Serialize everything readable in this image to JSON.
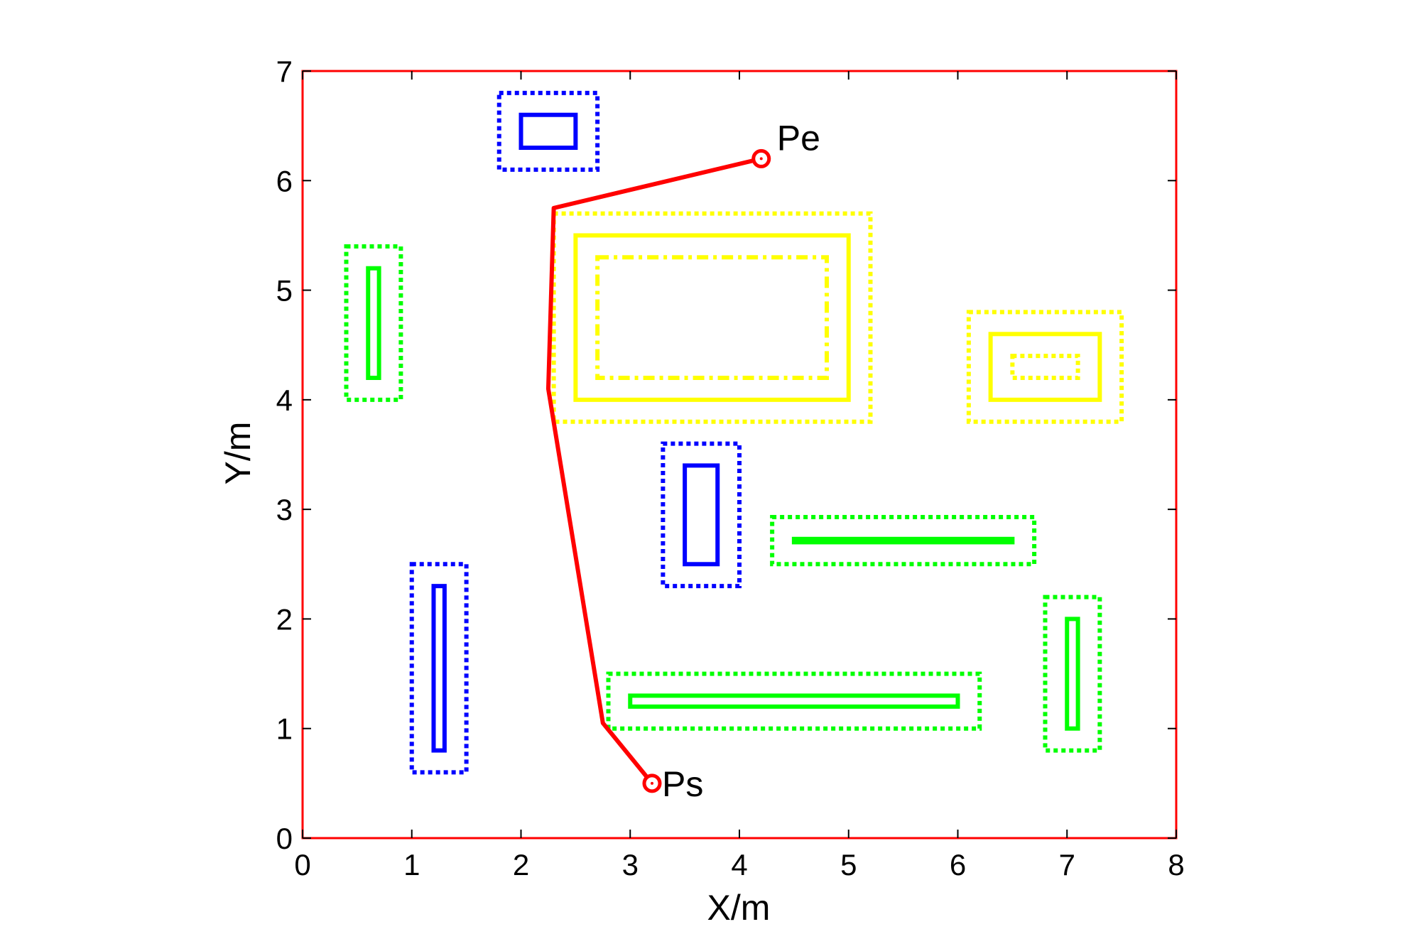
{
  "chart_data": {
    "type": "line",
    "title": "",
    "xlabel": "X/m",
    "ylabel": "Y/m",
    "xlim": [
      0,
      8
    ],
    "ylim": [
      0,
      7
    ],
    "xticks": [
      0,
      1,
      2,
      3,
      4,
      5,
      6,
      7,
      8
    ],
    "yticks": [
      0,
      1,
      2,
      3,
      4,
      5,
      6,
      7
    ],
    "grid": false,
    "frame_color": "#ff0000",
    "path": {
      "color": "#ff0000",
      "points": [
        {
          "x": 3.2,
          "y": 0.5
        },
        {
          "x": 2.75,
          "y": 1.05
        },
        {
          "x": 2.25,
          "y": 4.1
        },
        {
          "x": 2.3,
          "y": 5.75
        },
        {
          "x": 4.2,
          "y": 6.2
        }
      ]
    },
    "markers": [
      {
        "label": "Ps",
        "x": 3.2,
        "y": 0.5
      },
      {
        "label": "Pe",
        "x": 4.2,
        "y": 6.2
      }
    ],
    "obstacles": [
      {
        "color": "#0000ff",
        "style": "solid",
        "x0": 2.0,
        "x1": 2.5,
        "y0": 6.3,
        "y1": 6.6
      },
      {
        "color": "#0000ff",
        "style": "dotted",
        "x0": 1.8,
        "x1": 2.7,
        "y0": 6.1,
        "y1": 6.8
      },
      {
        "color": "#00ff00",
        "style": "solid",
        "x0": 0.6,
        "x1": 0.7,
        "y0": 4.2,
        "y1": 5.2
      },
      {
        "color": "#00ff00",
        "style": "dotted",
        "x0": 0.4,
        "x1": 0.9,
        "y0": 4.0,
        "y1": 5.4
      },
      {
        "color": "#ffff00",
        "style": "solid",
        "x0": 2.5,
        "x1": 5.0,
        "y0": 4.0,
        "y1": 5.5
      },
      {
        "color": "#ffff00",
        "style": "dotted",
        "x0": 2.3,
        "x1": 5.2,
        "y0": 3.8,
        "y1": 5.7
      },
      {
        "color": "#ffff00",
        "style": "dashdot",
        "x0": 2.7,
        "x1": 4.8,
        "y0": 4.2,
        "y1": 5.3
      },
      {
        "color": "#ffff00",
        "style": "solid",
        "x0": 6.3,
        "x1": 7.3,
        "y0": 4.0,
        "y1": 4.6
      },
      {
        "color": "#ffff00",
        "style": "dotted",
        "x0": 6.1,
        "x1": 7.5,
        "y0": 3.8,
        "y1": 4.8
      },
      {
        "color": "#ffff00",
        "style": "dotted",
        "x0": 6.5,
        "x1": 7.1,
        "y0": 4.2,
        "y1": 4.4
      },
      {
        "color": "#0000ff",
        "style": "solid",
        "x0": 3.5,
        "x1": 3.8,
        "y0": 2.5,
        "y1": 3.4
      },
      {
        "color": "#0000ff",
        "style": "dotted",
        "x0": 3.3,
        "x1": 4.0,
        "y0": 2.3,
        "y1": 3.6
      },
      {
        "color": "#00ff00",
        "style": "solid",
        "x0": 4.5,
        "x1": 6.5,
        "y0": 2.7,
        "y1": 2.73
      },
      {
        "color": "#00ff00",
        "style": "dotted",
        "x0": 4.3,
        "x1": 6.7,
        "y0": 2.5,
        "y1": 2.93
      },
      {
        "color": "#0000ff",
        "style": "solid",
        "x0": 1.2,
        "x1": 1.3,
        "y0": 0.8,
        "y1": 2.3
      },
      {
        "color": "#0000ff",
        "style": "dotted",
        "x0": 1.0,
        "x1": 1.5,
        "y0": 0.6,
        "y1": 2.5
      },
      {
        "color": "#00ff00",
        "style": "solid",
        "x0": 3.0,
        "x1": 6.0,
        "y0": 1.2,
        "y1": 1.3
      },
      {
        "color": "#00ff00",
        "style": "dotted",
        "x0": 2.8,
        "x1": 6.2,
        "y0": 1.0,
        "y1": 1.5
      },
      {
        "color": "#00ff00",
        "style": "solid",
        "x0": 7.0,
        "x1": 7.1,
        "y0": 1.0,
        "y1": 2.0
      },
      {
        "color": "#00ff00",
        "style": "dotted",
        "x0": 6.8,
        "x1": 7.3,
        "y0": 0.8,
        "y1": 2.2
      }
    ]
  }
}
